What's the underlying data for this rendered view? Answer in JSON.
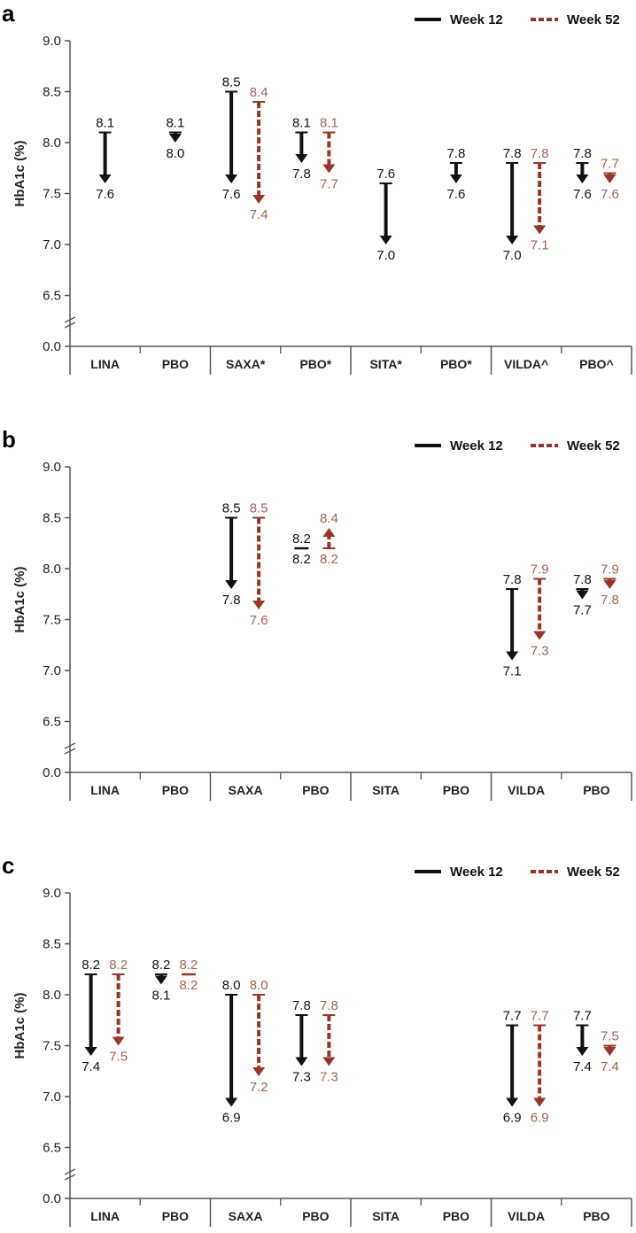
{
  "colors": {
    "week12": "#111111",
    "week52": "#9b3424",
    "week52_label": "#a8634f",
    "axis": "#555555"
  },
  "chart_data": [
    {
      "type": "arrow-range",
      "panel": "a",
      "ylabel": "HbA1c (%)",
      "yticks": [
        "9.0",
        "8.5",
        "8.0",
        "7.5",
        "7.0",
        "6.5",
        "0.0"
      ],
      "ylim": [
        6.5,
        9.0
      ],
      "axis_break": true,
      "legend": [
        "Week 12",
        "Week 52"
      ],
      "legend_position": "top-right",
      "groups": [
        [
          "LINA",
          "PBO"
        ],
        [
          "SAXA*",
          "PBO*"
        ],
        [
          "SITA*",
          "PBO*"
        ],
        [
          "VILDA^",
          "PBO^"
        ]
      ],
      "categories": [
        {
          "name": "LINA",
          "week12": [
            8.1,
            7.6
          ],
          "week52": null
        },
        {
          "name": "PBO",
          "week12": [
            8.1,
            8.0
          ],
          "week52": null
        },
        {
          "name": "SAXA*",
          "week12": [
            8.5,
            7.6
          ],
          "week52": [
            8.4,
            7.4
          ]
        },
        {
          "name": "PBO*",
          "week12": [
            8.1,
            7.8
          ],
          "week52": [
            8.1,
            7.7
          ]
        },
        {
          "name": "SITA*",
          "week12": [
            7.6,
            7.0
          ],
          "week52": null
        },
        {
          "name": "PBO*",
          "week12": [
            7.8,
            7.6
          ],
          "week52": null
        },
        {
          "name": "VILDA^",
          "week12": [
            7.8,
            7.0
          ],
          "week52": [
            7.8,
            7.1
          ]
        },
        {
          "name": "PBO^",
          "week12": [
            7.8,
            7.6
          ],
          "week52": [
            7.7,
            7.6
          ]
        }
      ]
    },
    {
      "type": "arrow-range",
      "panel": "b",
      "ylabel": "HbA1c (%)",
      "yticks": [
        "9.0",
        "8.5",
        "8.0",
        "7.5",
        "7.0",
        "6.5",
        "0.0"
      ],
      "ylim": [
        6.5,
        9.0
      ],
      "axis_break": true,
      "legend": [
        "Week 12",
        "Week 52"
      ],
      "legend_position": "top-right",
      "categories": [
        {
          "name": "LINA",
          "week12": null,
          "week52": null
        },
        {
          "name": "PBO",
          "week12": null,
          "week52": null
        },
        {
          "name": "SAXA",
          "week12": [
            8.5,
            7.8
          ],
          "week52": [
            8.5,
            7.6
          ]
        },
        {
          "name": "PBO",
          "week12": [
            8.2,
            8.2
          ],
          "week52": [
            8.2,
            8.4
          ]
        },
        {
          "name": "SITA",
          "week12": null,
          "week52": null
        },
        {
          "name": "PBO",
          "week12": null,
          "week52": null
        },
        {
          "name": "VILDA",
          "week12": [
            7.8,
            7.1
          ],
          "week52": [
            7.9,
            7.3
          ]
        },
        {
          "name": "PBO",
          "week12": [
            7.8,
            7.7
          ],
          "week52": [
            7.9,
            7.8
          ]
        }
      ]
    },
    {
      "type": "arrow-range",
      "panel": "c",
      "ylabel": "HbA1c (%)",
      "yticks": [
        "9.0",
        "8.5",
        "8.0",
        "7.5",
        "7.0",
        "6.5",
        "0.0"
      ],
      "ylim": [
        6.5,
        9.0
      ],
      "axis_break": true,
      "legend": [
        "Week 12",
        "Week 52"
      ],
      "legend_position": "top-right",
      "categories": [
        {
          "name": "LINA",
          "week12": [
            8.2,
            7.4
          ],
          "week52": [
            8.2,
            7.5
          ]
        },
        {
          "name": "PBO",
          "week12": [
            8.2,
            8.1
          ],
          "week52": [
            8.2,
            8.2
          ]
        },
        {
          "name": "SAXA",
          "week12": [
            8.0,
            6.9
          ],
          "week52": [
            8.0,
            7.2
          ]
        },
        {
          "name": "PBO",
          "week12": [
            7.8,
            7.3
          ],
          "week52": [
            7.8,
            7.3
          ]
        },
        {
          "name": "SITA",
          "week12": null,
          "week52": null
        },
        {
          "name": "PBO",
          "week12": null,
          "week52": null
        },
        {
          "name": "VILDA",
          "week12": [
            7.7,
            6.9
          ],
          "week52": [
            7.7,
            6.9
          ]
        },
        {
          "name": "PBO",
          "week12": [
            7.7,
            7.4
          ],
          "week52": [
            7.5,
            7.4
          ]
        }
      ]
    }
  ]
}
